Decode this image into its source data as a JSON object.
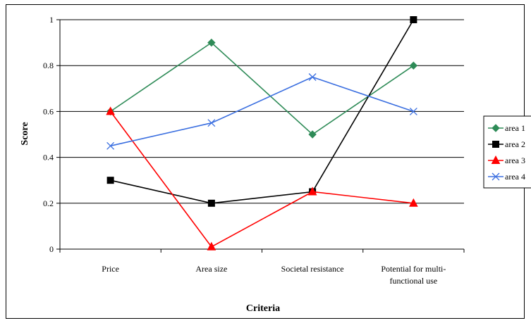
{
  "chart_data": {
    "type": "line",
    "title": "",
    "xlabel": "Criteria",
    "ylabel": "Score",
    "ylim": [
      0,
      1
    ],
    "y_ticks": [
      "0",
      "0.2",
      "0.4",
      "0.6",
      "0.8",
      "1"
    ],
    "grid": "horizontal",
    "legend_position": "right",
    "categories": [
      [
        "Price"
      ],
      [
        "Area size"
      ],
      [
        "Societal resistance"
      ],
      [
        "Potential for multi-",
        "functional use"
      ]
    ],
    "series": [
      {
        "name": "area 1",
        "values": [
          0.6,
          0.9,
          0.5,
          0.8
        ],
        "color": "#2e8b57",
        "marker": "diamond"
      },
      {
        "name": "area 2",
        "values": [
          0.3,
          0.2,
          0.25,
          1.0
        ],
        "color": "#000000",
        "marker": "square"
      },
      {
        "name": "area 3",
        "values": [
          0.6,
          0.01,
          0.25,
          0.2
        ],
        "color": "#ff0000",
        "marker": "triangle"
      },
      {
        "name": "area 4",
        "values": [
          0.45,
          0.55,
          0.75,
          0.6
        ],
        "color": "#3b6fe0",
        "marker": "x"
      }
    ]
  }
}
